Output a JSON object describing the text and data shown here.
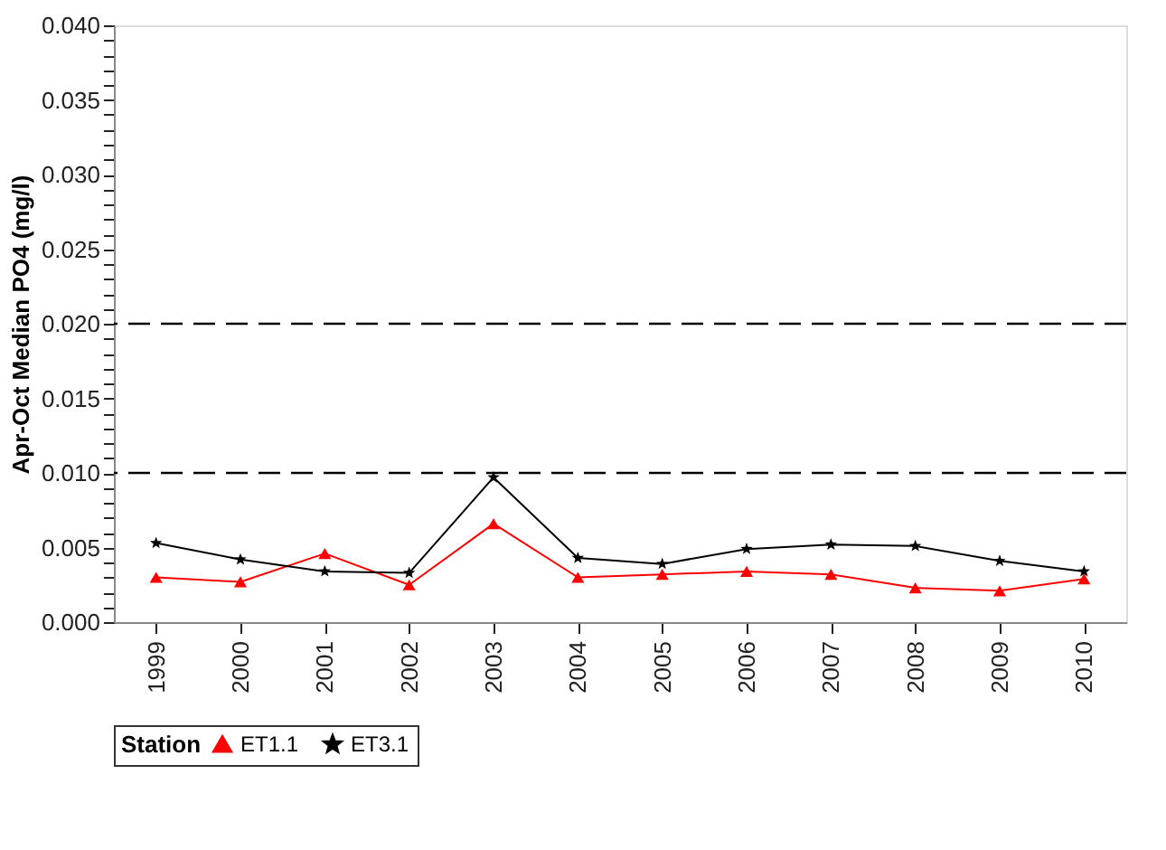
{
  "chart_data": {
    "type": "line",
    "ylabel": "Apr-Oct Median PO4 (mg/l)",
    "legend_title": "Station",
    "legend": "bottom",
    "grid": false,
    "categories": [
      "1999",
      "2000",
      "2001",
      "2002",
      "2003",
      "2004",
      "2005",
      "2006",
      "2007",
      "2008",
      "2009",
      "2010"
    ],
    "series": [
      {
        "name": "ET1.1",
        "color": "#ff0000",
        "marker": "triangle",
        "values": [
          0.003,
          0.0027,
          0.0046,
          0.0025,
          0.0066,
          0.003,
          0.0032,
          0.0034,
          0.0032,
          0.0023,
          0.0021,
          0.0029
        ]
      },
      {
        "name": "ET3.1",
        "color": "#000000",
        "marker": "star",
        "values": [
          0.0053,
          0.0042,
          0.0034,
          0.0033,
          0.0097,
          0.0043,
          0.0039,
          0.0049,
          0.0052,
          0.0051,
          0.0041,
          0.0034
        ]
      }
    ],
    "ylim": [
      0,
      0.04
    ],
    "yticks": [
      {
        "value": 0,
        "label": "0.000"
      },
      {
        "value": 0.001,
        "label": null
      },
      {
        "value": 0.002,
        "label": null
      },
      {
        "value": 0.003,
        "label": null
      },
      {
        "value": 0.004,
        "label": null
      },
      {
        "value": 0.005,
        "label": "0.005"
      },
      {
        "value": 0.006,
        "label": null
      },
      {
        "value": 0.007,
        "label": null
      },
      {
        "value": 0.008,
        "label": null
      },
      {
        "value": 0.009,
        "label": null
      },
      {
        "value": 0.01,
        "label": "0.010"
      },
      {
        "value": 0.011,
        "label": null
      },
      {
        "value": 0.012,
        "label": null
      },
      {
        "value": 0.013,
        "label": null
      },
      {
        "value": 0.014,
        "label": null
      },
      {
        "value": 0.015,
        "label": "0.015"
      },
      {
        "value": 0.016,
        "label": null
      },
      {
        "value": 0.017,
        "label": null
      },
      {
        "value": 0.018,
        "label": null
      },
      {
        "value": 0.019,
        "label": null
      },
      {
        "value": 0.02,
        "label": "0.020"
      },
      {
        "value": 0.021,
        "label": null
      },
      {
        "value": 0.022,
        "label": null
      },
      {
        "value": 0.023,
        "label": null
      },
      {
        "value": 0.024,
        "label": null
      },
      {
        "value": 0.025,
        "label": "0.025"
      },
      {
        "value": 0.026,
        "label": null
      },
      {
        "value": 0.027,
        "label": null
      },
      {
        "value": 0.028,
        "label": null
      },
      {
        "value": 0.029,
        "label": null
      },
      {
        "value": 0.03,
        "label": "0.030"
      },
      {
        "value": 0.031,
        "label": null
      },
      {
        "value": 0.032,
        "label": null
      },
      {
        "value": 0.033,
        "label": null
      },
      {
        "value": 0.034,
        "label": null
      },
      {
        "value": 0.035,
        "label": "0.035"
      },
      {
        "value": 0.036,
        "label": null
      },
      {
        "value": 0.037,
        "label": null
      },
      {
        "value": 0.038,
        "label": null
      },
      {
        "value": 0.039,
        "label": null
      },
      {
        "value": 0.04,
        "label": "0.040"
      }
    ],
    "ref_lines": [
      {
        "axis": "y",
        "value": 0.01,
        "line_style": "dashed",
        "color": "#000000"
      },
      {
        "axis": "y",
        "value": 0.02,
        "line_style": "dashed",
        "color": "#000000"
      }
    ]
  }
}
